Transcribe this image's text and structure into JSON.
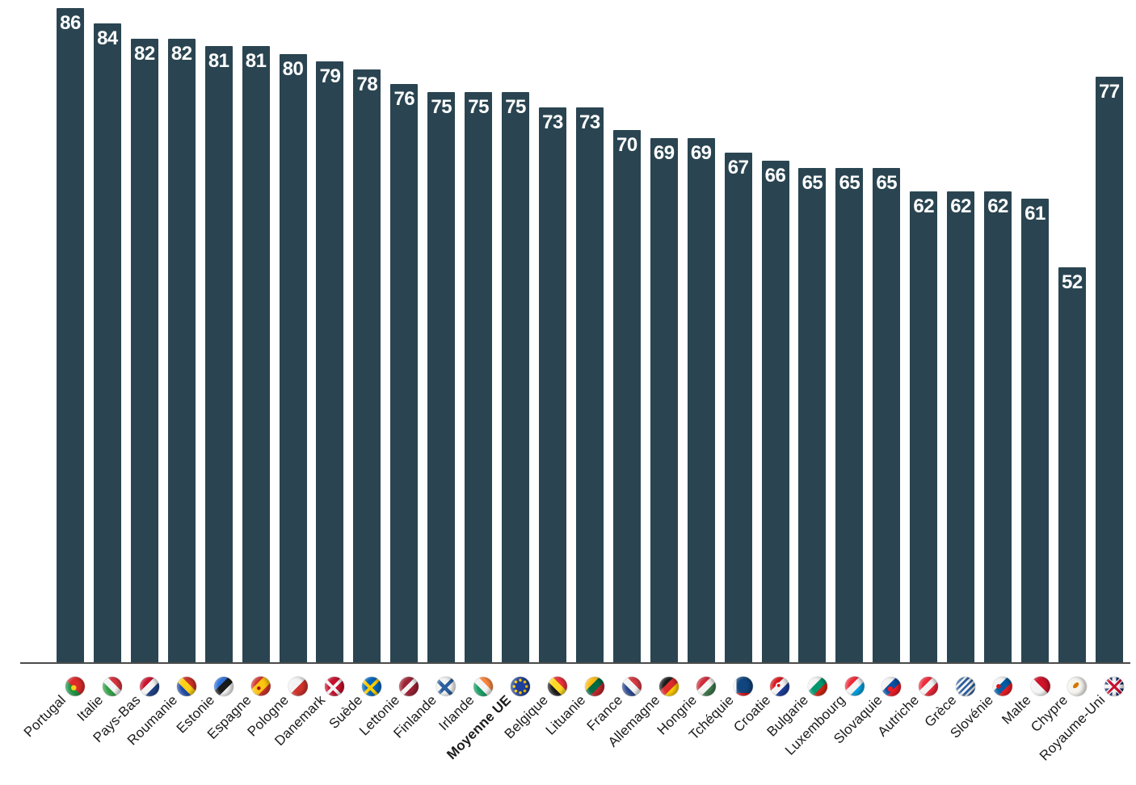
{
  "chart_data": {
    "type": "bar",
    "title": "",
    "xlabel": "",
    "ylabel": "",
    "ylim": [
      0,
      86
    ],
    "grid": false,
    "legend": "none",
    "bar_color": "#2a4551",
    "axis_line_color": "#4b4b4b",
    "value_label_color": "#ffffff",
    "category_label_color": "#1b1b1b",
    "emphasized_category": "Moyenne UE",
    "emphasis_index": 12,
    "categories": [
      "Portugal",
      "Italie",
      "Pays-Bas",
      "Roumanie",
      "Estonie",
      "Espagne",
      "Pologne",
      "Danemark",
      "Suède",
      "Lettonie",
      "Finlande",
      "Irlande",
      "Moyenne UE",
      "Belgique",
      "Lituanie",
      "France",
      "Allemagne",
      "Hongrie",
      "Tchéquie",
      "Croatie",
      "Bulgarie",
      "Luxembourg",
      "Slovaquie",
      "Autriche",
      "Grèce",
      "Slovénie",
      "Malte",
      "Chypre",
      "Royaume-Uni"
    ],
    "values": [
      86,
      84,
      82,
      82,
      81,
      81,
      80,
      79,
      78,
      76,
      75,
      75,
      75,
      73,
      73,
      70,
      69,
      69,
      67,
      66,
      65,
      65,
      65,
      62,
      62,
      62,
      61,
      52,
      77
    ],
    "flag_codes": [
      "pt",
      "it",
      "nl",
      "ro",
      "ee",
      "es",
      "pl",
      "dk",
      "se",
      "lv",
      "fi",
      "ie",
      "eu",
      "be",
      "lt",
      "fr",
      "de",
      "hu",
      "cz",
      "hr",
      "bg",
      "lu",
      "sk",
      "at",
      "gr",
      "si",
      "mt",
      "cy",
      "gb"
    ],
    "flag_icons": [
      "flag-portugal-icon",
      "flag-italy-icon",
      "flag-netherlands-icon",
      "flag-romania-icon",
      "flag-estonia-icon",
      "flag-spain-icon",
      "flag-poland-icon",
      "flag-denmark-icon",
      "flag-sweden-icon",
      "flag-latvia-icon",
      "flag-finland-icon",
      "flag-ireland-icon",
      "flag-eu-icon",
      "flag-belgium-icon",
      "flag-lithuania-icon",
      "flag-france-icon",
      "flag-germany-icon",
      "flag-hungary-icon",
      "flag-czechia-icon",
      "flag-croatia-icon",
      "flag-bulgaria-icon",
      "flag-luxembourg-icon",
      "flag-slovakia-icon",
      "flag-austria-icon",
      "flag-greece-icon",
      "flag-slovenia-icon",
      "flag-malta-icon",
      "flag-cyprus-icon",
      "flag-uk-icon"
    ]
  }
}
